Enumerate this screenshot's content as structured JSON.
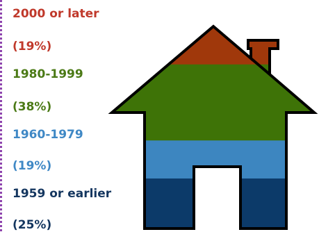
{
  "chart_data": {
    "type": "pictograph",
    "title": "",
    "unit": "%",
    "categories": [
      "2000 or later",
      "1980-1999",
      "1960-1979",
      "1959 or earlier"
    ],
    "values": [
      19,
      38,
      19,
      25
    ],
    "labels": [
      {
        "category": "2000 or later",
        "percent_text": "(19%)",
        "color": "#c0392b"
      },
      {
        "category": "1980-1999",
        "percent_text": "(38%)",
        "color": "#4b7a16"
      },
      {
        "category": "1960-1979",
        "percent_text": "(19%)",
        "color": "#3f88c5"
      },
      {
        "category": "1959 or earlier",
        "percent_text": "(25%)",
        "color": "#14365f"
      }
    ],
    "fill_colors": [
      "#a0380b",
      "#3e7307",
      "#3d86c0",
      "#0c3a69"
    ],
    "stack_order": "top-to-bottom",
    "legend_position": "left"
  }
}
